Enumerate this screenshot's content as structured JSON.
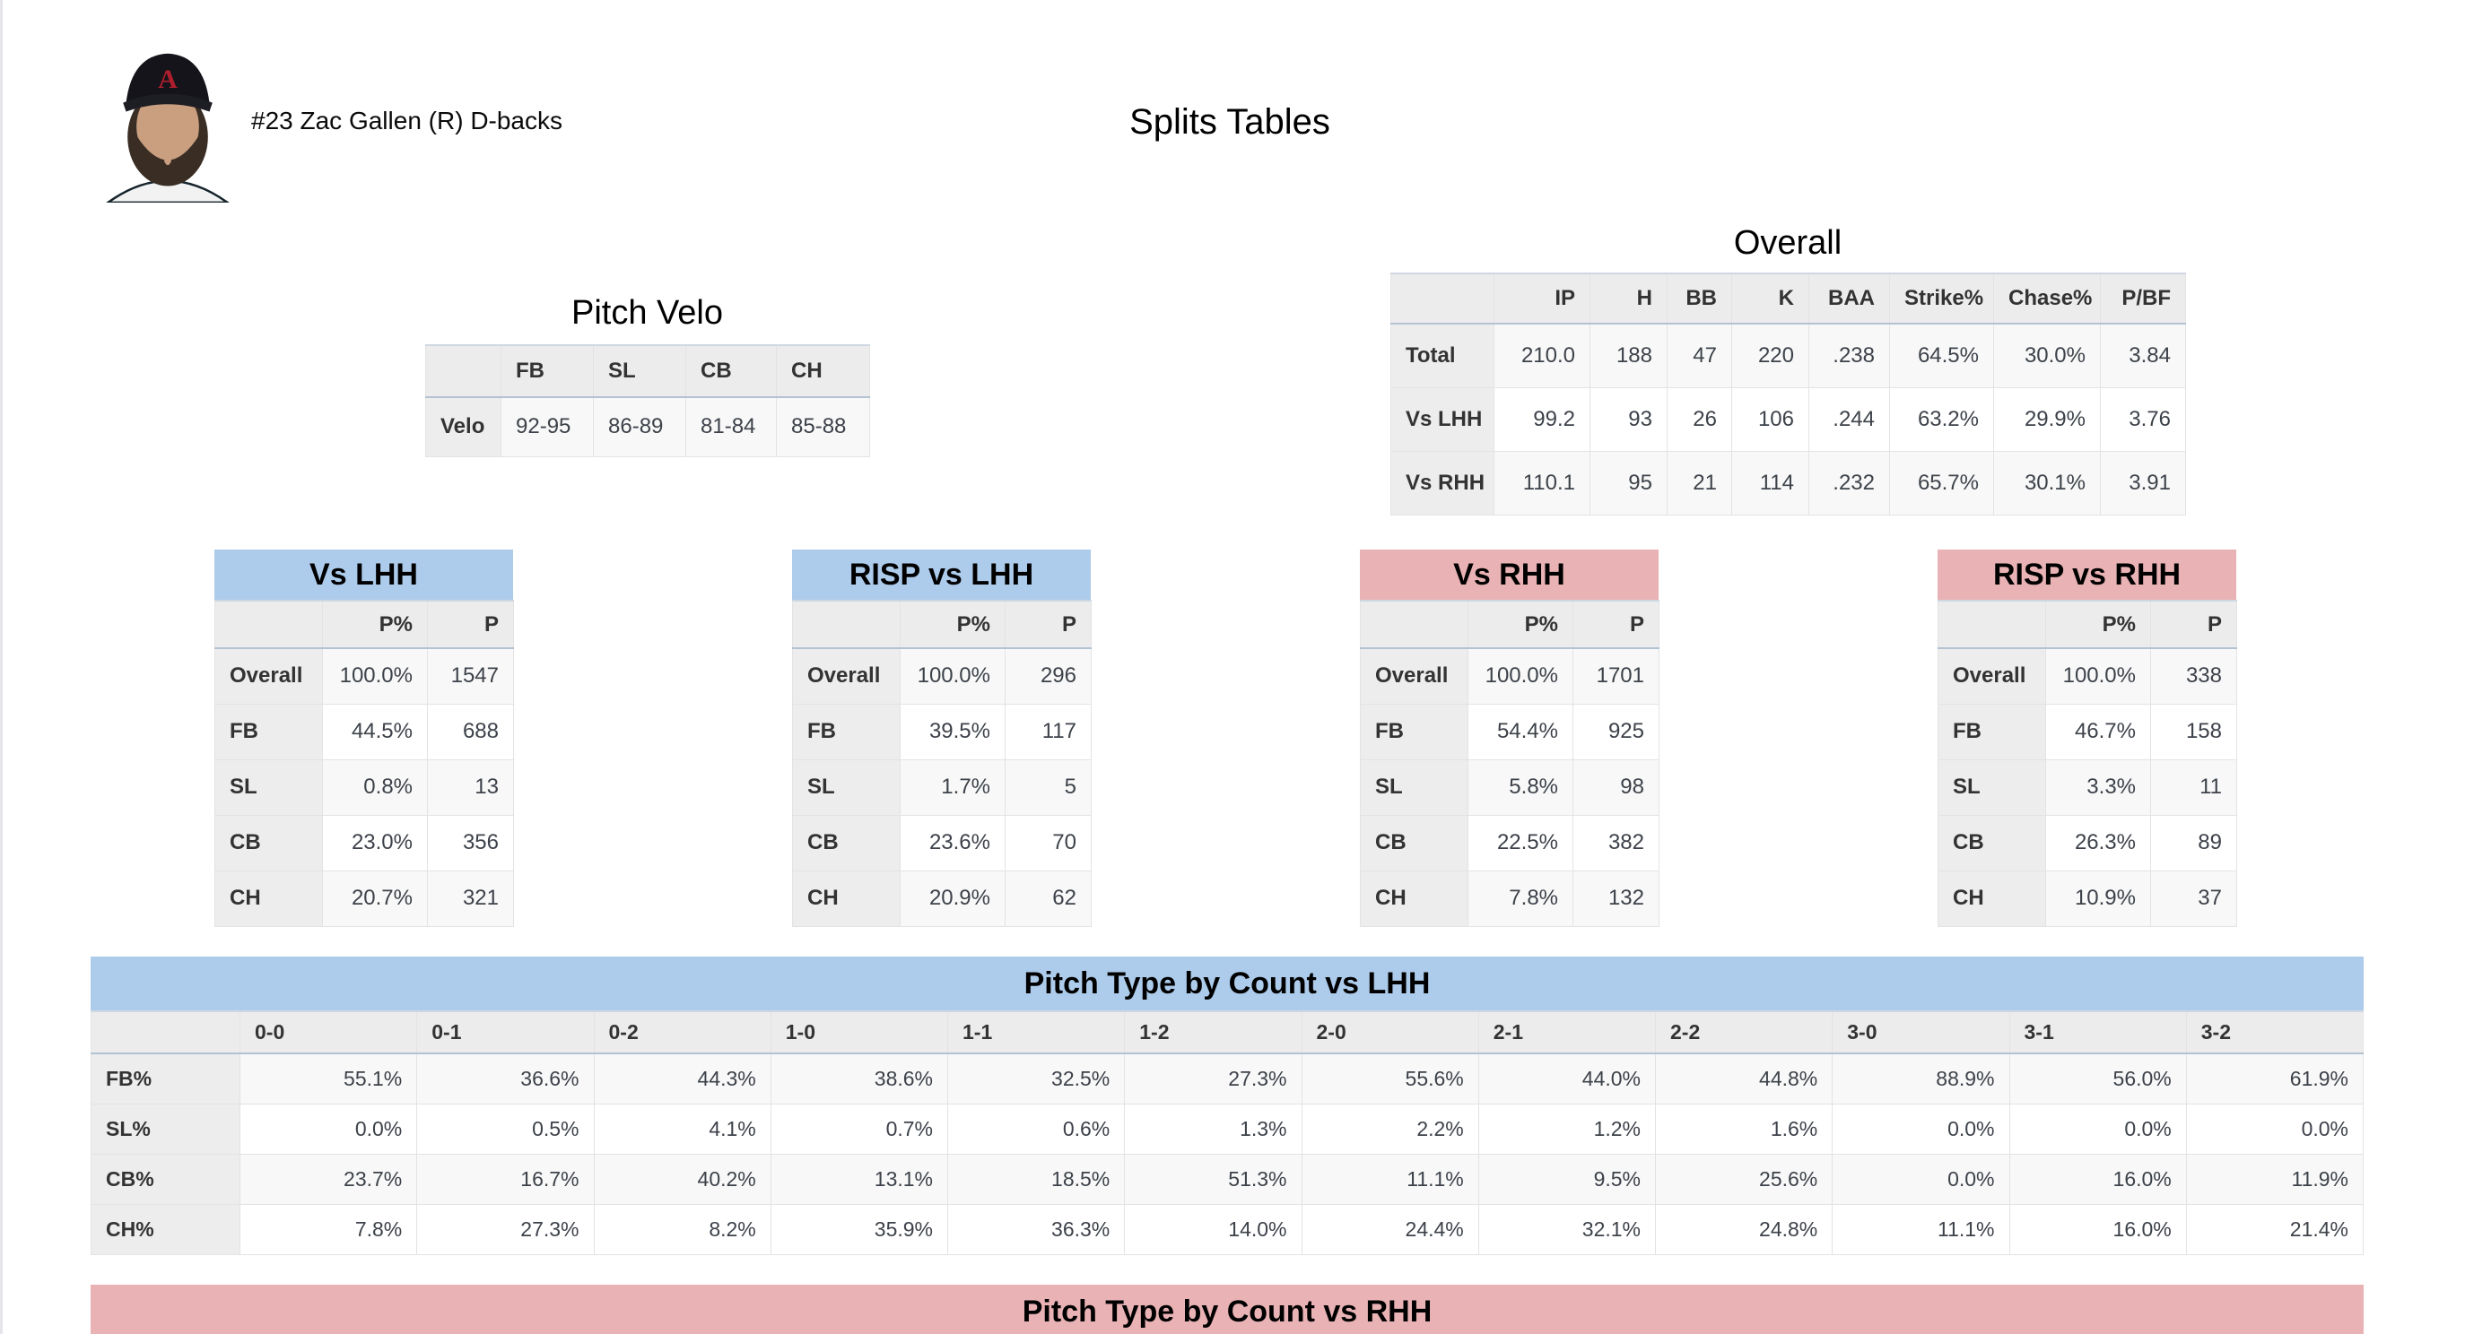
{
  "header": {
    "player": "#23 Zac Gallen (R) D-backs",
    "title": "Splits Tables"
  },
  "colors": {
    "lhh_accent": "#adcbeb",
    "rhh_accent": "#e9b2b4"
  },
  "pitch_velo": {
    "title": "Pitch Velo",
    "columns": [
      "",
      "FB",
      "SL",
      "CB",
      "CH"
    ],
    "rows": [
      {
        "label": "Velo",
        "values": [
          "92-95",
          "86-89",
          "81-84",
          "85-88"
        ]
      }
    ]
  },
  "overall": {
    "title": "Overall",
    "columns": [
      "",
      "IP",
      "H",
      "BB",
      "K",
      "BAA",
      "Strike%",
      "Chase%",
      "P/BF"
    ],
    "rows": [
      {
        "label": "Total",
        "values": [
          "210.0",
          "188",
          "47",
          "220",
          ".238",
          "64.5%",
          "30.0%",
          "3.84"
        ]
      },
      {
        "label": "Vs LHH",
        "values": [
          "99.2",
          "93",
          "26",
          "106",
          ".244",
          "63.2%",
          "29.9%",
          "3.76"
        ]
      },
      {
        "label": "Vs RHH",
        "values": [
          "110.1",
          "95",
          "21",
          "114",
          ".232",
          "65.7%",
          "30.1%",
          "3.91"
        ]
      }
    ]
  },
  "vs_lhh": {
    "title": "Vs LHH",
    "columns": [
      "",
      "P%",
      "P"
    ],
    "rows": [
      {
        "label": "Overall",
        "values": [
          "100.0%",
          "1547"
        ]
      },
      {
        "label": "FB",
        "values": [
          "44.5%",
          "688"
        ]
      },
      {
        "label": "SL",
        "values": [
          "0.8%",
          "13"
        ]
      },
      {
        "label": "CB",
        "values": [
          "23.0%",
          "356"
        ]
      },
      {
        "label": "CH",
        "values": [
          "20.7%",
          "321"
        ]
      }
    ]
  },
  "risp_vs_lhh": {
    "title": "RISP vs LHH",
    "columns": [
      "",
      "P%",
      "P"
    ],
    "rows": [
      {
        "label": "Overall",
        "values": [
          "100.0%",
          "296"
        ]
      },
      {
        "label": "FB",
        "values": [
          "39.5%",
          "117"
        ]
      },
      {
        "label": "SL",
        "values": [
          "1.7%",
          "5"
        ]
      },
      {
        "label": "CB",
        "values": [
          "23.6%",
          "70"
        ]
      },
      {
        "label": "CH",
        "values": [
          "20.9%",
          "62"
        ]
      }
    ]
  },
  "vs_rhh": {
    "title": "Vs RHH",
    "columns": [
      "",
      "P%",
      "P"
    ],
    "rows": [
      {
        "label": "Overall",
        "values": [
          "100.0%",
          "1701"
        ]
      },
      {
        "label": "FB",
        "values": [
          "54.4%",
          "925"
        ]
      },
      {
        "label": "SL",
        "values": [
          "5.8%",
          "98"
        ]
      },
      {
        "label": "CB",
        "values": [
          "22.5%",
          "382"
        ]
      },
      {
        "label": "CH",
        "values": [
          "7.8%",
          "132"
        ]
      }
    ]
  },
  "risp_vs_rhh": {
    "title": "RISP vs RHH",
    "columns": [
      "",
      "P%",
      "P"
    ],
    "rows": [
      {
        "label": "Overall",
        "values": [
          "100.0%",
          "338"
        ]
      },
      {
        "label": "FB",
        "values": [
          "46.7%",
          "158"
        ]
      },
      {
        "label": "SL",
        "values": [
          "3.3%",
          "11"
        ]
      },
      {
        "label": "CB",
        "values": [
          "26.3%",
          "89"
        ]
      },
      {
        "label": "CH",
        "values": [
          "10.9%",
          "37"
        ]
      }
    ]
  },
  "count_vs_lhh": {
    "title": "Pitch Type by Count vs LHH",
    "columns": [
      "",
      "0-0",
      "0-1",
      "0-2",
      "1-0",
      "1-1",
      "1-2",
      "2-0",
      "2-1",
      "2-2",
      "3-0",
      "3-1",
      "3-2"
    ],
    "rows": [
      {
        "label": "FB%",
        "values": [
          "55.1%",
          "36.6%",
          "44.3%",
          "38.6%",
          "32.5%",
          "27.3%",
          "55.6%",
          "44.0%",
          "44.8%",
          "88.9%",
          "56.0%",
          "61.9%"
        ]
      },
      {
        "label": "SL%",
        "values": [
          "0.0%",
          "0.5%",
          "4.1%",
          "0.7%",
          "0.6%",
          "1.3%",
          "2.2%",
          "1.2%",
          "1.6%",
          "0.0%",
          "0.0%",
          "0.0%"
        ]
      },
      {
        "label": "CB%",
        "values": [
          "23.7%",
          "16.7%",
          "40.2%",
          "13.1%",
          "18.5%",
          "51.3%",
          "11.1%",
          "9.5%",
          "25.6%",
          "0.0%",
          "16.0%",
          "11.9%"
        ]
      },
      {
        "label": "CH%",
        "values": [
          "7.8%",
          "27.3%",
          "8.2%",
          "35.9%",
          "36.3%",
          "14.0%",
          "24.4%",
          "32.1%",
          "24.8%",
          "11.1%",
          "16.0%",
          "21.4%"
        ]
      }
    ]
  },
  "count_vs_rhh": {
    "title": "Pitch Type by Count vs RHH"
  }
}
